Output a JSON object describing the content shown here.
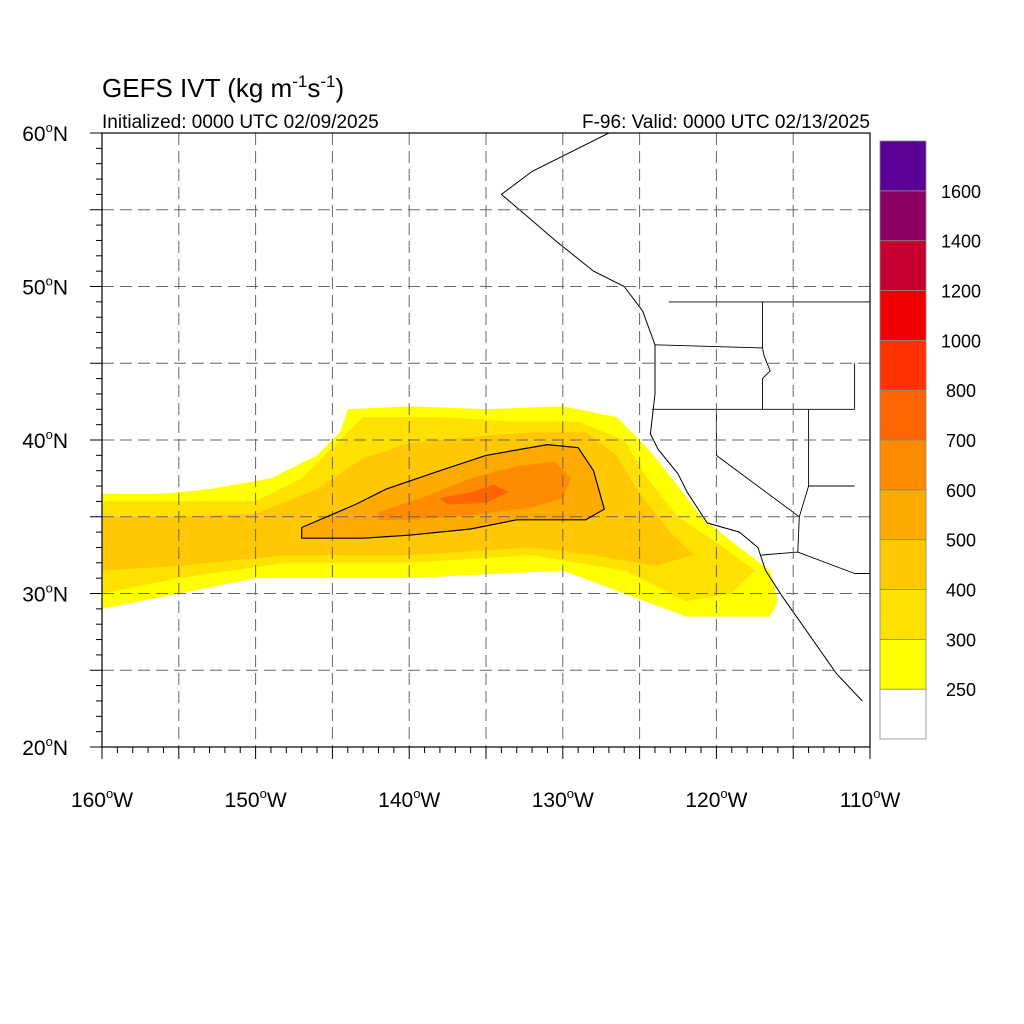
{
  "header": {
    "title_main": "GEFS IVT (kg m",
    "title_exp1": "-1",
    "title_mid": "s",
    "title_exp2": "-1",
    "title_end": ")",
    "initialized": "Initialized: 0000 UTC 02/09/2025",
    "valid": "F-96: Valid: 0000 UTC 02/13/2025"
  },
  "axes": {
    "lat_labels": [
      {
        "value": 60,
        "text": "60"
      },
      {
        "value": 50,
        "text": "50"
      },
      {
        "value": 40,
        "text": "40"
      },
      {
        "value": 30,
        "text": "30"
      },
      {
        "value": 20,
        "text": "20"
      }
    ],
    "lat_suffix": "N",
    "lon_labels": [
      {
        "value": -160,
        "text": "160"
      },
      {
        "value": -150,
        "text": "150"
      },
      {
        "value": -140,
        "text": "140"
      },
      {
        "value": -130,
        "text": "130"
      },
      {
        "value": -120,
        "text": "120"
      },
      {
        "value": -110,
        "text": "110"
      }
    ],
    "lon_suffix": "W",
    "degree_symbol": "o",
    "lon_range": [
      -160,
      -110
    ],
    "lat_range": [
      20,
      60
    ]
  },
  "colorbar": {
    "labels": [
      "250",
      "300",
      "400",
      "500",
      "600",
      "700",
      "800",
      "1000",
      "1200",
      "1400",
      "1600"
    ],
    "colors": [
      "#ffffff",
      "#ffff00",
      "#ffe100",
      "#ffc800",
      "#ffaa00",
      "#ff8c00",
      "#ff6400",
      "#ff3200",
      "#f00000",
      "#c80032",
      "#8c0064",
      "#5a0096"
    ]
  },
  "chart_data": {
    "type": "heatmap",
    "variable": "IVT",
    "units": "kg m-1 s-1",
    "levels": [
      250,
      300,
      400,
      500,
      600,
      700,
      800,
      1000,
      1200,
      1400,
      1600
    ],
    "contour_level": 500,
    "regions": [
      {
        "level": 250,
        "points": [
          [
            -160,
            36.5
          ],
          [
            -156,
            36.5
          ],
          [
            -153,
            36.8
          ],
          [
            -149,
            37.5
          ],
          [
            -146,
            39
          ],
          [
            -144.5,
            40.5
          ],
          [
            -144,
            42
          ],
          [
            -140,
            42.2
          ],
          [
            -135,
            42
          ],
          [
            -130,
            42.2
          ],
          [
            -126.5,
            41.5
          ],
          [
            -124.5,
            39.5
          ],
          [
            -122.5,
            37
          ],
          [
            -121,
            35
          ],
          [
            -118.5,
            33
          ],
          [
            -116.5,
            31.5
          ],
          [
            -116,
            29.5
          ],
          [
            -116.5,
            28.5
          ],
          [
            -122,
            28.5
          ],
          [
            -126,
            30
          ],
          [
            -130,
            31.5
          ],
          [
            -140,
            31
          ],
          [
            -150,
            31
          ],
          [
            -155,
            30
          ],
          [
            -160,
            29
          ]
        ]
      },
      {
        "level": 300,
        "points": [
          [
            -160,
            36
          ],
          [
            -155,
            36
          ],
          [
            -150,
            36
          ],
          [
            -147,
            37.5
          ],
          [
            -145,
            39.5
          ],
          [
            -143,
            41.5
          ],
          [
            -138,
            41.5
          ],
          [
            -133,
            41.2
          ],
          [
            -129,
            41.2
          ],
          [
            -126,
            40
          ],
          [
            -124.5,
            37.5
          ],
          [
            -122.5,
            35
          ],
          [
            -119.5,
            33
          ],
          [
            -117.5,
            31.5
          ],
          [
            -119,
            30
          ],
          [
            -122,
            29.5
          ],
          [
            -126,
            31.5
          ],
          [
            -132,
            32.5
          ],
          [
            -140,
            32
          ],
          [
            -148,
            32
          ],
          [
            -155,
            31
          ],
          [
            -160,
            30
          ]
        ]
      },
      {
        "level": 400,
        "points": [
          [
            -160,
            35
          ],
          [
            -155,
            35
          ],
          [
            -150,
            35.2
          ],
          [
            -146,
            36.8
          ],
          [
            -143,
            38.8
          ],
          [
            -140,
            39.8
          ],
          [
            -136,
            40.2
          ],
          [
            -132,
            40.5
          ],
          [
            -128.5,
            40.5
          ],
          [
            -126.5,
            39
          ],
          [
            -125,
            36.5
          ],
          [
            -123,
            34
          ],
          [
            -121.5,
            32.5
          ],
          [
            -124,
            31.8
          ],
          [
            -128,
            32.5
          ],
          [
            -132,
            33
          ],
          [
            -140,
            32.5
          ],
          [
            -148,
            32.5
          ],
          [
            -155,
            31.8
          ],
          [
            -160,
            31.5
          ]
        ]
      },
      {
        "level": 500,
        "points": [
          [
            -147,
            34.3
          ],
          [
            -143.5,
            35.8
          ],
          [
            -141.5,
            36.8
          ],
          [
            -138,
            38
          ],
          [
            -135,
            39
          ],
          [
            -131,
            39.7
          ],
          [
            -129,
            39.5
          ],
          [
            -128,
            38
          ],
          [
            -127.3,
            35.5
          ],
          [
            -128.5,
            34.8
          ],
          [
            -133,
            34.8
          ],
          [
            -136,
            34.2
          ],
          [
            -140,
            33.8
          ],
          [
            -143,
            33.6
          ],
          [
            -147,
            33.6
          ]
        ]
      },
      {
        "level": 600,
        "points": [
          [
            -142,
            35.3
          ],
          [
            -139,
            36.3
          ],
          [
            -136,
            37.5
          ],
          [
            -133,
            38.3
          ],
          [
            -130.5,
            38.6
          ],
          [
            -129.5,
            37.5
          ],
          [
            -130,
            36.2
          ],
          [
            -132,
            35.6
          ],
          [
            -136,
            35.1
          ],
          [
            -140,
            34.8
          ],
          [
            -142,
            34.8
          ]
        ]
      },
      {
        "level": 700,
        "points": [
          [
            -138,
            36.2
          ],
          [
            -136,
            36.6
          ],
          [
            -134.5,
            37.1
          ],
          [
            -133.5,
            36.6
          ],
          [
            -135,
            35.9
          ],
          [
            -137.5,
            35.8
          ]
        ]
      }
    ],
    "contour_500": [
      [
        -147,
        34.3
      ],
      [
        -143.5,
        35.8
      ],
      [
        -141.5,
        36.8
      ],
      [
        -138,
        38
      ],
      [
        -135,
        39
      ],
      [
        -131,
        39.7
      ],
      [
        -129,
        39.5
      ],
      [
        -128,
        38
      ],
      [
        -127.3,
        35.5
      ],
      [
        -128.5,
        34.8
      ],
      [
        -133,
        34.8
      ],
      [
        -136,
        34.2
      ],
      [
        -140,
        33.8
      ],
      [
        -143,
        33.6
      ],
      [
        -147,
        33.6
      ],
      [
        -147,
        34.3
      ]
    ],
    "coast_points": [
      [
        -127,
        60
      ],
      [
        -132,
        57.5
      ],
      [
        -134,
        56
      ],
      [
        -132,
        54.3
      ],
      [
        -130.5,
        53
      ],
      [
        -128,
        51
      ],
      [
        -126,
        50
      ],
      [
        -124.8,
        48.4
      ],
      [
        -124,
        46.2
      ],
      [
        -124,
        43
      ],
      [
        -124.3,
        40.4
      ],
      [
        -123.8,
        39.4
      ],
      [
        -122.5,
        37.8
      ],
      [
        -121.9,
        36.6
      ],
      [
        -120.6,
        34.6
      ],
      [
        -118.5,
        34
      ],
      [
        -117.3,
        33
      ],
      [
        -116.8,
        31.5
      ],
      [
        -115.7,
        29.8
      ],
      [
        -114.3,
        27.8
      ],
      [
        -112.2,
        24.8
      ],
      [
        -110.5,
        23
      ]
    ],
    "borders": [
      [
        [
          -123.1,
          49
        ],
        [
          -95,
          49
        ]
      ],
      [
        [
          -124.2,
          42
        ],
        [
          -111,
          42
        ]
      ],
      [
        [
          -120,
          42
        ],
        [
          -120,
          39
        ],
        [
          -114.6,
          35
        ]
      ],
      [
        [
          -117.1,
          32.5
        ],
        [
          -114.7,
          32.7
        ],
        [
          -111,
          31.3
        ]
      ],
      [
        [
          -124,
          46.2
        ],
        [
          -117,
          46
        ],
        [
          -116.9,
          45.5
        ],
        [
          -116.5,
          44.5
        ],
        [
          -117,
          44
        ],
        [
          -117,
          42
        ]
      ],
      [
        [
          -117,
          49
        ],
        [
          -117,
          46
        ]
      ],
      [
        [
          -111,
          45
        ],
        [
          -111,
          42
        ]
      ],
      [
        [
          -114,
          42
        ],
        [
          -114,
          37
        ],
        [
          -111,
          37
        ]
      ],
      [
        [
          -114,
          37
        ],
        [
          -114.6,
          35
        ],
        [
          -114.7,
          32.7
        ]
      ],
      [
        [
          -111,
          31.3
        ],
        [
          -108,
          31.3
        ]
      ]
    ]
  }
}
